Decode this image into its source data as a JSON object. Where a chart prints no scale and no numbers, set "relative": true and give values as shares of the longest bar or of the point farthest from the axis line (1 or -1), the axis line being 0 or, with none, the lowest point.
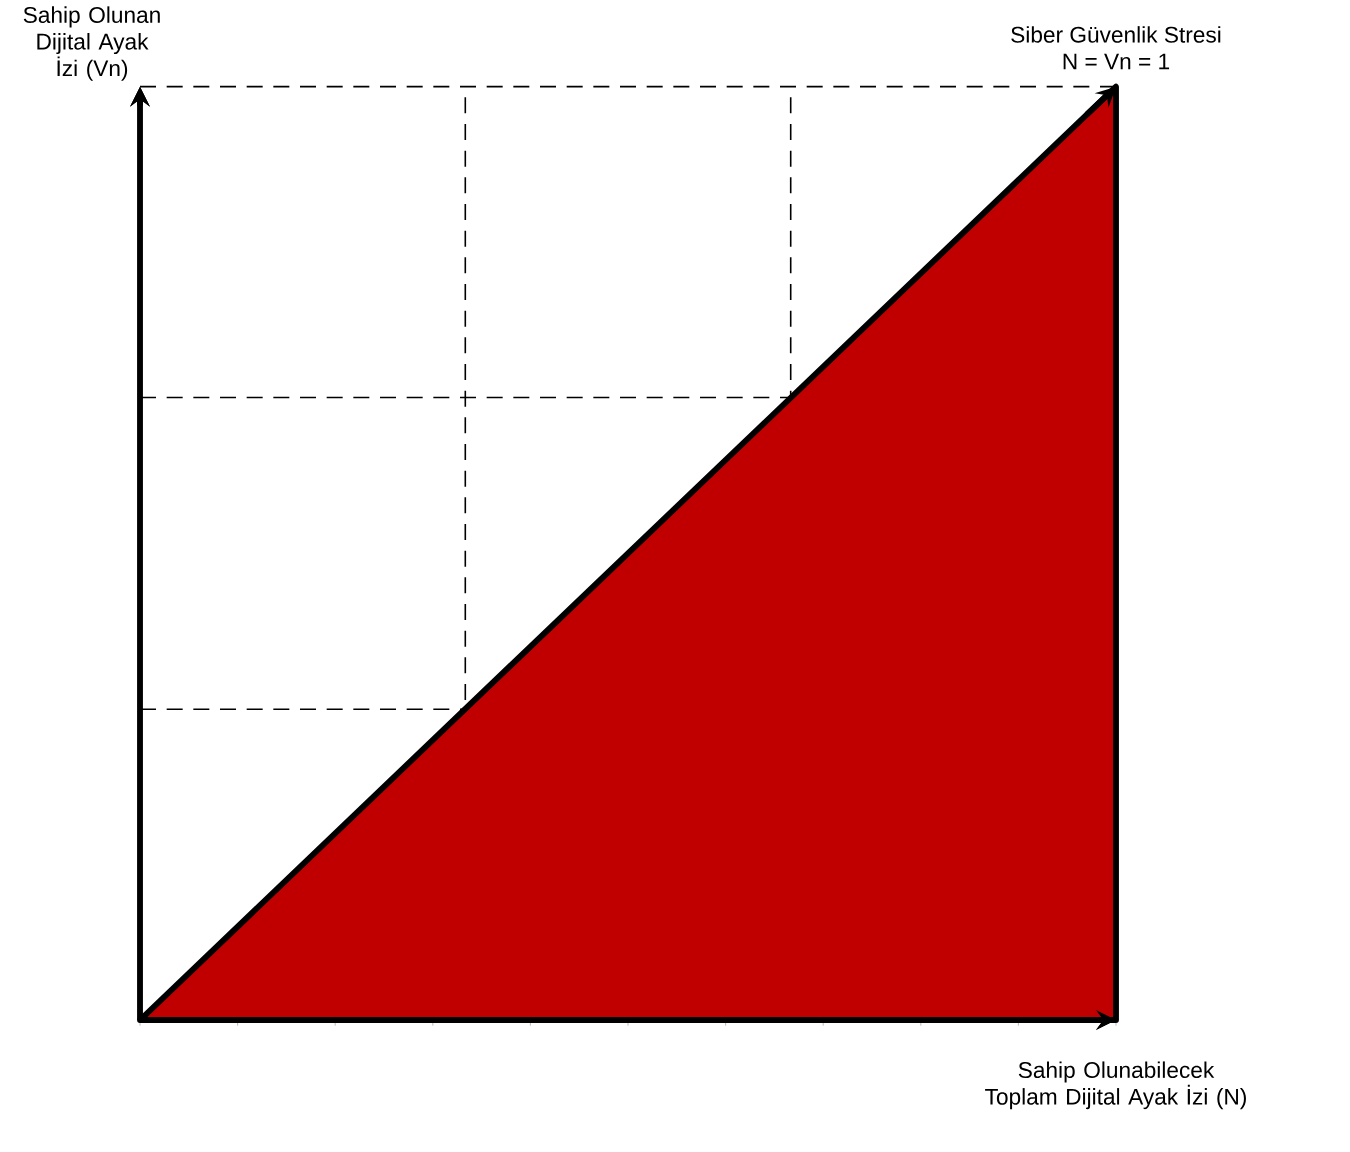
{
  "chart_data": {
    "type": "area",
    "relative": true,
    "xlabel": "Sahip Olunabilecek Toplam Dijital Ayak İzi (N)",
    "ylabel": "Sahip Olunan Dijital Ayak İzi (Vn)",
    "categories": [
      null,
      null
    ],
    "series": [
      {
        "color": "#c00000",
        "values": [
          0,
          1
        ]
      }
    ],
    "ref_lines": [
      {
        "axis": "y",
        "value": 0.333,
        "line_style": "dashed"
      },
      {
        "axis": "y",
        "value": 0.667,
        "line_style": "dashed"
      },
      {
        "axis": "y",
        "value": 1,
        "line_style": "dashed"
      }
    ],
    "annotations": [
      "Siber Güvenlik Stresi",
      "N = Vn = 1"
    ]
  }
}
